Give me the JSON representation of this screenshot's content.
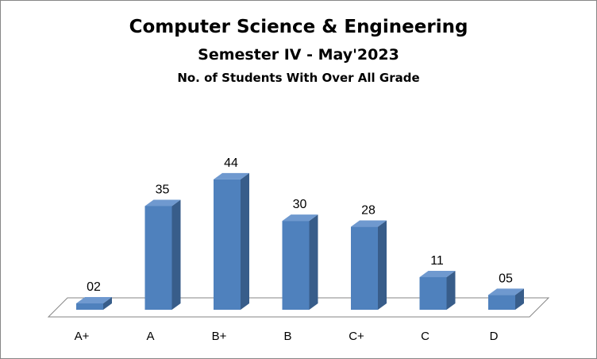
{
  "chart_data": {
    "type": "bar",
    "title": "Computer Science & Engineering",
    "subtitle": "Semester IV - May'2023",
    "subtitle2": "No. of Students With Over All Grade",
    "categories": [
      "A+",
      "A",
      "B+",
      "B",
      "C+",
      "C",
      "D"
    ],
    "values": [
      2,
      35,
      44,
      30,
      28,
      11,
      5
    ],
    "value_labels": [
      "02",
      "35",
      "44",
      "30",
      "28",
      "11",
      "05"
    ],
    "xlabel": "",
    "ylabel": "",
    "ylim": [
      0,
      50
    ],
    "grid": false,
    "legend": "none",
    "style": "3d-column",
    "colors": {
      "bar_front": "#4f81bd",
      "bar_side": "#385d8a",
      "bar_top": "#6f99cf",
      "floor_stroke": "#868686"
    }
  }
}
